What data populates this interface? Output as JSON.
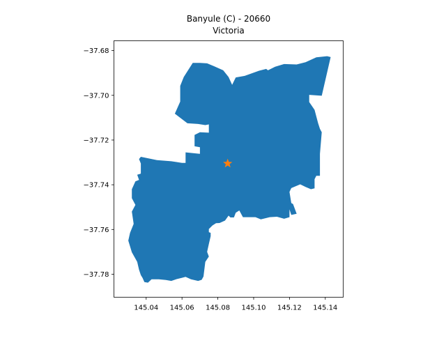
{
  "title": {
    "line1": "Banyule (C) - 20660",
    "line2": "Victoria"
  },
  "colors": {
    "region_fill": "#1f77b4",
    "marker": "#ff7f0e",
    "axes": "#000000"
  },
  "map_data": {
    "type": "map",
    "region_shape": "polygon",
    "marker_shape": "star",
    "xlim": [
      145.022,
      145.15
    ],
    "ylim": [
      -37.7903,
      -37.6756
    ],
    "x_ticks": [
      145.04,
      145.06,
      145.08,
      145.1,
      145.12,
      145.14
    ],
    "x_tick_labels": [
      "145.04",
      "145.06",
      "145.08",
      "145.10",
      "145.12",
      "145.14"
    ],
    "y_ticks": [
      -37.68,
      -37.7,
      -37.72,
      -37.74,
      -37.76,
      -37.78
    ],
    "y_tick_labels": [
      "−37.68",
      "−37.70",
      "−37.72",
      "−37.74",
      "−37.76",
      "−37.78"
    ],
    "marker": {
      "lon": 145.0855,
      "lat": -37.7305
    },
    "polygon": [
      [
        145.141,
        -37.6825
      ],
      [
        145.143,
        -37.6829
      ],
      [
        145.138,
        -37.7002
      ],
      [
        145.131,
        -37.6998
      ],
      [
        145.131,
        -37.703
      ],
      [
        145.134,
        -37.7065
      ],
      [
        145.136,
        -37.7125
      ],
      [
        145.137,
        -37.715
      ],
      [
        145.138,
        -37.7165
      ],
      [
        145.137,
        -37.7262
      ],
      [
        145.137,
        -37.732
      ],
      [
        145.137,
        -37.736
      ],
      [
        145.135,
        -37.736
      ],
      [
        145.134,
        -37.7375
      ],
      [
        145.134,
        -37.7416
      ],
      [
        145.132,
        -37.742
      ],
      [
        145.129,
        -37.741
      ],
      [
        145.126,
        -37.7398
      ],
      [
        145.121,
        -37.7415
      ],
      [
        145.12,
        -37.7432
      ],
      [
        145.121,
        -37.7482
      ],
      [
        145.122,
        -37.7486
      ],
      [
        145.124,
        -37.753
      ],
      [
        145.121,
        -37.7535
      ],
      [
        145.12,
        -37.751
      ],
      [
        145.12,
        -37.7545
      ],
      [
        145.117,
        -37.7552
      ],
      [
        145.113,
        -37.7543
      ],
      [
        145.109,
        -37.7545
      ],
      [
        145.104,
        -37.7555
      ],
      [
        145.101,
        -37.7545
      ],
      [
        145.094,
        -37.7545
      ],
      [
        145.092,
        -37.7515
      ],
      [
        145.09,
        -37.7525
      ],
      [
        145.089,
        -37.7546
      ],
      [
        145.087,
        -37.7546
      ],
      [
        145.086,
        -37.7538
      ],
      [
        145.084,
        -37.756
      ],
      [
        145.081,
        -37.7571
      ],
      [
        145.079,
        -37.7572
      ],
      [
        145.077,
        -37.7582
      ],
      [
        145.075,
        -37.7598
      ],
      [
        145.075,
        -37.7612
      ],
      [
        145.076,
        -37.7615
      ],
      [
        145.076,
        -37.763
      ],
      [
        145.075,
        -37.7665
      ],
      [
        145.074,
        -37.77
      ],
      [
        145.075,
        -37.7721
      ],
      [
        145.073,
        -37.7745
      ],
      [
        145.072,
        -37.781
      ],
      [
        145.071,
        -37.7825
      ],
      [
        145.069,
        -37.783
      ],
      [
        145.065,
        -37.7823
      ],
      [
        145.062,
        -37.7812
      ],
      [
        145.06,
        -37.7816
      ],
      [
        145.057,
        -37.7822
      ],
      [
        145.054,
        -37.783
      ],
      [
        145.051,
        -37.7826
      ],
      [
        145.047,
        -37.7823
      ],
      [
        145.045,
        -37.7823
      ],
      [
        145.043,
        -37.7823
      ],
      [
        145.041,
        -37.7838
      ],
      [
        145.039,
        -37.7835
      ],
      [
        145.038,
        -37.7817
      ],
      [
        145.037,
        -37.7804
      ],
      [
        145.036,
        -37.778
      ],
      [
        145.035,
        -37.7745
      ],
      [
        145.032,
        -37.7702
      ],
      [
        145.03,
        -37.765
      ],
      [
        145.031,
        -37.7615
      ],
      [
        145.033,
        -37.7575
      ],
      [
        145.032,
        -37.752
      ],
      [
        145.034,
        -37.749
      ],
      [
        145.032,
        -37.746
      ],
      [
        145.032,
        -37.742
      ],
      [
        145.034,
        -37.7385
      ],
      [
        145.036,
        -37.7378
      ],
      [
        145.035,
        -37.7355
      ],
      [
        145.037,
        -37.735
      ],
      [
        145.037,
        -37.7305
      ],
      [
        145.036,
        -37.7285
      ],
      [
        145.037,
        -37.7275
      ],
      [
        145.046,
        -37.729
      ],
      [
        145.054,
        -37.7295
      ],
      [
        145.06,
        -37.7302
      ],
      [
        145.062,
        -37.7302
      ],
      [
        145.062,
        -37.7255
      ],
      [
        145.07,
        -37.7262
      ],
      [
        145.07,
        -37.7232
      ],
      [
        145.067,
        -37.7228
      ],
      [
        145.067,
        -37.7177
      ],
      [
        145.07,
        -37.7165
      ],
      [
        145.075,
        -37.7167
      ],
      [
        145.075,
        -37.713
      ],
      [
        145.073,
        -37.7133
      ],
      [
        145.069,
        -37.7128
      ],
      [
        145.063,
        -37.7125
      ],
      [
        145.056,
        -37.7082
      ],
      [
        145.059,
        -37.7028
      ],
      [
        145.059,
        -37.6958
      ],
      [
        145.061,
        -37.6918
      ],
      [
        145.066,
        -37.6855
      ],
      [
        145.07,
        -37.6855
      ],
      [
        145.074,
        -37.6857
      ],
      [
        145.078,
        -37.687
      ],
      [
        145.083,
        -37.6888
      ],
      [
        145.086,
        -37.6918
      ],
      [
        145.088,
        -37.6953
      ],
      [
        145.09,
        -37.692
      ],
      [
        145.095,
        -37.6913
      ],
      [
        145.103,
        -37.689
      ],
      [
        145.107,
        -37.6882
      ],
      [
        145.108,
        -37.6888
      ],
      [
        145.112,
        -37.6872
      ],
      [
        145.117,
        -37.686
      ],
      [
        145.124,
        -37.6862
      ],
      [
        145.129,
        -37.6852
      ],
      [
        145.135,
        -37.683
      ],
      [
        145.141,
        -37.6825
      ]
    ]
  }
}
